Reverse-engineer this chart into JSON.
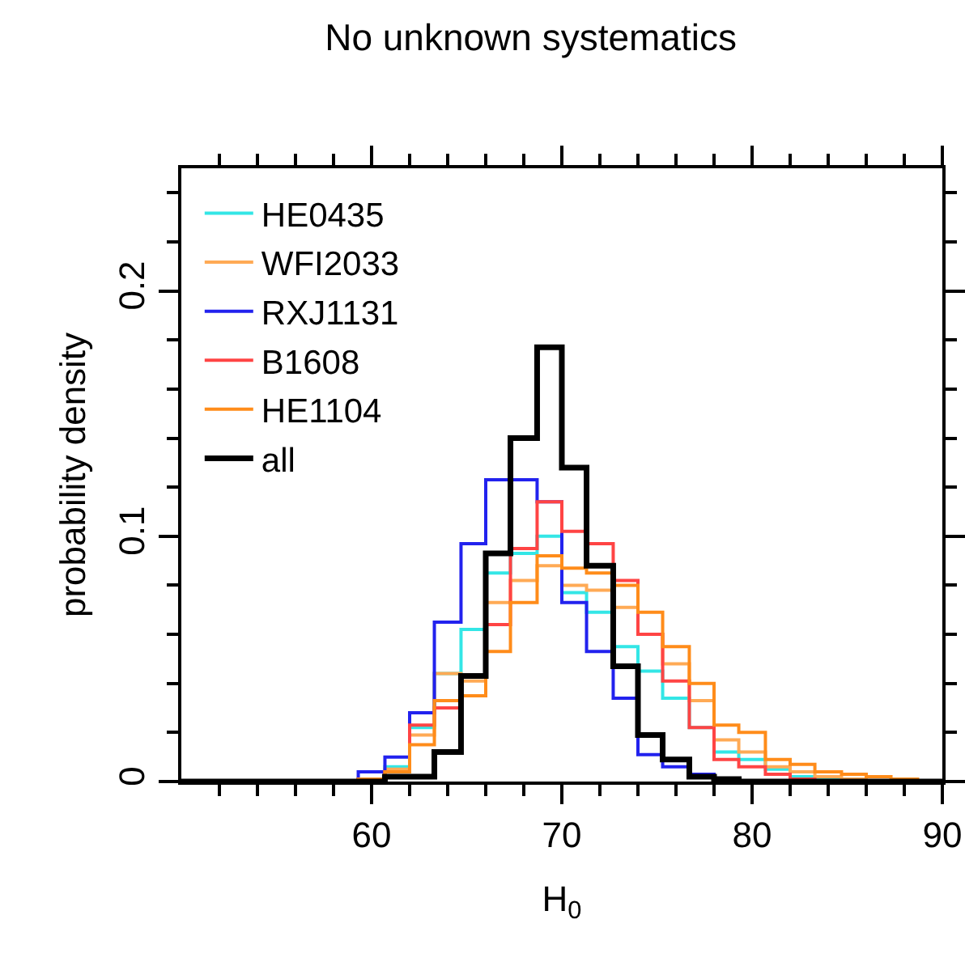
{
  "chart_data": {
    "type": "histogram",
    "title": "No unknown systematics",
    "xlabel": "H$_{0}$",
    "ylabel": "probability density",
    "bins": [
      50,
      51.3,
      52.7,
      54,
      55.3,
      56.7,
      58,
      59.3,
      60.7,
      62,
      63.3,
      64.7,
      66,
      67.3,
      68.7,
      70,
      71.3,
      72.7,
      74,
      75.3,
      76.7,
      78,
      79.3,
      80.7,
      82,
      83.3,
      84.7,
      86,
      87.3,
      88.7,
      90
    ],
    "series": [
      {
        "name": "HE0435",
        "color": "#33e6e6",
        "values": [
          0,
          0,
          0,
          0,
          0,
          0,
          0,
          0.001,
          0.006,
          0.022,
          0.044,
          0.062,
          0.085,
          0.093,
          0.1,
          0.077,
          0.069,
          0.055,
          0.045,
          0.034,
          0.022,
          0.012,
          0.009,
          0.005,
          0.002,
          0.001,
          0,
          0,
          0,
          0
        ]
      },
      {
        "name": "WFI2033",
        "color": "#ffaa55",
        "values": [
          0,
          0,
          0,
          0,
          0,
          0,
          0,
          0.001,
          0.005,
          0.019,
          0.044,
          0.041,
          0.073,
          0.082,
          0.088,
          0.08,
          0.078,
          0.071,
          0.06,
          0.048,
          0.033,
          0.017,
          0.012,
          0.006,
          0.004,
          0.002,
          0.001,
          0,
          0,
          0
        ]
      },
      {
        "name": "RXJ1131",
        "color": "#2222ee",
        "values": [
          0,
          0,
          0,
          0,
          0,
          0,
          0,
          0.004,
          0.01,
          0.028,
          0.065,
          0.097,
          0.123,
          0.123,
          0.114,
          0.073,
          0.053,
          0.034,
          0.011,
          0.006,
          0.003,
          0.001,
          0,
          0,
          0,
          0,
          0,
          0,
          0,
          0
        ]
      },
      {
        "name": "B1608",
        "color": "#ff4444",
        "values": [
          0,
          0,
          0,
          0,
          0,
          0,
          0,
          0.001,
          0.004,
          0.023,
          0.03,
          0.043,
          0.064,
          0.095,
          0.114,
          0.102,
          0.097,
          0.082,
          0.06,
          0.041,
          0.022,
          0.009,
          0.006,
          0.003,
          0.001,
          0,
          0,
          0,
          0,
          0
        ]
      },
      {
        "name": "HE1104",
        "color": "#ff8c1a",
        "values": [
          0,
          0,
          0,
          0,
          0,
          0,
          0,
          0.001,
          0.004,
          0.015,
          0.033,
          0.035,
          0.053,
          0.073,
          0.092,
          0.087,
          0.085,
          0.08,
          0.069,
          0.055,
          0.04,
          0.023,
          0.02,
          0.009,
          0.007,
          0.004,
          0.003,
          0.002,
          0.001,
          0
        ]
      },
      {
        "name": "all",
        "color": "#000000",
        "values": [
          0,
          0,
          0,
          0,
          0,
          0,
          0,
          0,
          0.002,
          0.002,
          0.012,
          0.043,
          0.093,
          0.14,
          0.177,
          0.128,
          0.088,
          0.047,
          0.019,
          0.009,
          0.002,
          0.001,
          0,
          0,
          0,
          0,
          0,
          0,
          0,
          0
        ]
      }
    ],
    "xlim": [
      50,
      90
    ],
    "ylim": [
      0,
      0.25
    ],
    "xticks": [
      {
        "value": 52,
        "label": null
      },
      {
        "value": 54,
        "label": null
      },
      {
        "value": 56,
        "label": null
      },
      {
        "value": 58,
        "label": null
      },
      60,
      {
        "value": 62,
        "label": null
      },
      {
        "value": 64,
        "label": null
      },
      {
        "value": 66,
        "label": null
      },
      {
        "value": 68,
        "label": null
      },
      70,
      {
        "value": 72,
        "label": null
      },
      {
        "value": 74,
        "label": null
      },
      {
        "value": 76,
        "label": null
      },
      {
        "value": 78,
        "label": null
      },
      80,
      {
        "value": 82,
        "label": null
      },
      {
        "value": 84,
        "label": null
      },
      {
        "value": 86,
        "label": null
      },
      {
        "value": 88,
        "label": null
      },
      90
    ],
    "yticks": [
      0,
      {
        "value": 0.02,
        "label": null
      },
      {
        "value": 0.04,
        "label": null
      },
      {
        "value": 0.06,
        "label": null
      },
      {
        "value": 0.08,
        "label": null
      },
      0.1,
      {
        "value": 0.12,
        "label": null
      },
      {
        "value": 0.14,
        "label": null
      },
      {
        "value": 0.16,
        "label": null
      },
      {
        "value": 0.18,
        "label": null
      },
      0.2,
      {
        "value": 0.22,
        "label": null
      },
      {
        "value": 0.24,
        "label": null
      }
    ],
    "grid": false,
    "legend": "top left"
  }
}
